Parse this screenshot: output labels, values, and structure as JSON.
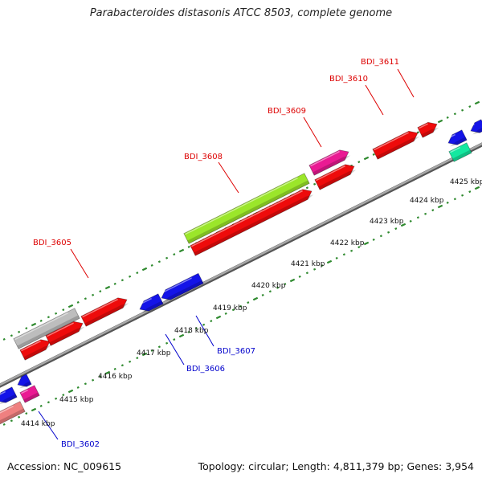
{
  "title": "Parabacteroides distasonis ATCC 8503, complete genome",
  "accession": "Accession: NC_009615",
  "summary": "Topology: circular; Length: 4,811,379 bp; Genes: 3,954",
  "colors": {
    "backbone": "#8a8a8a",
    "tick": "#2f8a2f",
    "label_top": "#dd0000",
    "label_bottom": "#0000cc",
    "gene_red": "#ee0b0b",
    "gene_lime": "#9be62a",
    "gene_magenta": "#ea1a93",
    "gene_blue": "#1414e8",
    "gene_gray": "#bdbdbd",
    "gene_pink": "#ef8080",
    "gene_teal": "#14e8a0"
  },
  "kbp_ticks": [
    "4414 kbp",
    "4415 kbp",
    "4416 kbp",
    "4417 kbp",
    "4418 kbp",
    "4419 kbp",
    "4420 kbp",
    "4421 kbp",
    "4422 kbp",
    "4423 kbp",
    "4424 kbp",
    "4425 kbp"
  ],
  "gene_labels": {
    "top": [
      "BDI_3605",
      "BDI_3608",
      "BDI_3609",
      "BDI_3610",
      "BDI_3611"
    ],
    "bottom": [
      "BDI_3602",
      "BDI_3606",
      "BDI_3607"
    ]
  }
}
